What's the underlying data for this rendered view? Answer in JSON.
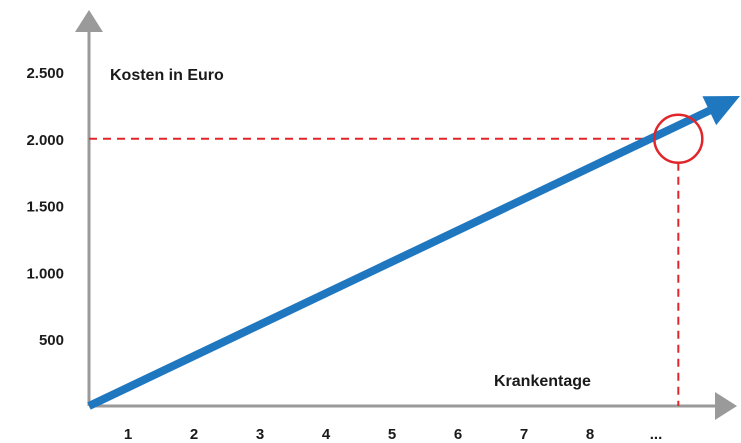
{
  "chart_data": {
    "type": "line",
    "title": "",
    "ylabel": "Kosten in Euro",
    "xlabel": "Krankentage",
    "x_ticks": [
      "1",
      "2",
      "3",
      "4",
      "5",
      "6",
      "7",
      "8",
      "..."
    ],
    "y_ticks": [
      "500",
      "1.000",
      "1.500",
      "2.000",
      "2.500"
    ],
    "y_tick_values": [
      500,
      1000,
      1500,
      2000,
      2500
    ],
    "xlim": [
      0,
      9.5
    ],
    "ylim": [
      0,
      2500
    ],
    "series": [
      {
        "x": [
          0,
          9.5
        ],
        "y": [
          0,
          2320
        ]
      }
    ],
    "highlight": {
      "x": 8.6,
      "y": 2000
    },
    "grid": false,
    "colors": {
      "line": "#1f77c0",
      "axis": "#9a9a9a",
      "highlight": "#e0262a",
      "text": "#1a1a1a"
    }
  }
}
